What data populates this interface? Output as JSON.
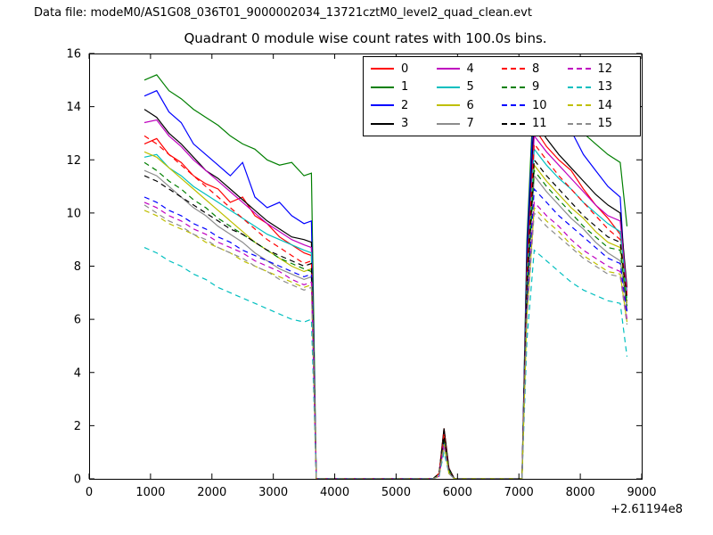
{
  "header": {
    "datafile": "Data file: modeM0/AS1G08_036T01_9000002034_13721cztM0_level2_quad_clean.evt"
  },
  "chart_data": {
    "type": "line",
    "title": "Quadrant 0 module wise count rates with 100.0s bins.",
    "xlabel": "",
    "ylabel": "",
    "xlim": [
      0,
      9000
    ],
    "ylim": [
      0,
      16
    ],
    "grid": false,
    "legend_position": "upper center, 4 columns, column-major",
    "x_offset_label": "+2.61194e8",
    "xticks": [
      0,
      1000,
      2000,
      3000,
      4000,
      5000,
      6000,
      7000,
      8000,
      9000
    ],
    "yticks": [
      0,
      2,
      4,
      6,
      8,
      10,
      12,
      14,
      16
    ],
    "x": [
      900,
      1100,
      1300,
      1500,
      1700,
      1900,
      2100,
      2300,
      2500,
      2700,
      2900,
      3100,
      3300,
      3500,
      3620,
      3700,
      4500,
      5600,
      5700,
      5780,
      5860,
      5950,
      7050,
      7130,
      7250,
      7450,
      7650,
      7850,
      8050,
      8250,
      8450,
      8650,
      8760
    ],
    "series": [
      {
        "name": "0",
        "color": "#ff0000",
        "dash": false,
        "values": [
          12.6,
          12.8,
          12.2,
          11.9,
          11.4,
          11.1,
          10.9,
          10.4,
          10.6,
          9.9,
          9.6,
          9.1,
          8.8,
          8.5,
          8.4,
          0,
          0,
          0,
          0.2,
          1.9,
          0.4,
          0,
          0,
          7.9,
          13.2,
          12.5,
          12.0,
          11.6,
          10.9,
          10.3,
          9.8,
          9.2,
          7.0
        ]
      },
      {
        "name": "1",
        "color": "#007f00",
        "dash": false,
        "values": [
          15.0,
          15.2,
          14.6,
          14.3,
          13.9,
          13.6,
          13.3,
          12.9,
          12.6,
          12.4,
          12.0,
          11.8,
          11.9,
          11.4,
          11.5,
          0,
          0,
          0,
          0.2,
          1.8,
          0.3,
          0,
          0,
          9.0,
          15.0,
          14.2,
          13.6,
          13.8,
          13.0,
          12.6,
          12.2,
          11.9,
          9.5
        ]
      },
      {
        "name": "2",
        "color": "#0000ff",
        "dash": false,
        "values": [
          14.4,
          14.6,
          13.8,
          13.4,
          12.6,
          12.2,
          11.8,
          11.4,
          11.9,
          10.6,
          10.2,
          10.4,
          9.9,
          9.6,
          9.7,
          0,
          0,
          0,
          0.2,
          1.7,
          0.3,
          0,
          0,
          8.6,
          14.4,
          13.6,
          12.9,
          13.1,
          12.2,
          11.6,
          11.0,
          10.6,
          6.3
        ]
      },
      {
        "name": "3",
        "color": "#000000",
        "dash": false,
        "values": [
          13.9,
          13.6,
          13.0,
          12.6,
          12.1,
          11.6,
          11.3,
          10.9,
          10.5,
          10.1,
          9.7,
          9.4,
          9.1,
          9.0,
          8.9,
          0,
          0,
          0,
          0.2,
          1.9,
          0.4,
          0,
          0,
          8.1,
          13.5,
          12.8,
          12.2,
          11.7,
          11.2,
          10.7,
          10.3,
          10.0,
          7.2
        ]
      },
      {
        "name": "4",
        "color": "#bf00bf",
        "dash": false,
        "values": [
          13.4,
          13.5,
          12.9,
          12.5,
          12.0,
          11.6,
          11.2,
          10.8,
          10.4,
          10.0,
          9.6,
          9.3,
          9.0,
          8.8,
          8.7,
          0,
          0,
          0,
          0.2,
          1.6,
          0.3,
          0,
          0,
          7.7,
          12.9,
          12.3,
          11.8,
          11.3,
          10.8,
          10.3,
          9.9,
          9.7,
          7.0
        ]
      },
      {
        "name": "5",
        "color": "#00bfbf",
        "dash": false,
        "values": [
          12.1,
          12.2,
          11.7,
          11.4,
          11.0,
          10.7,
          10.4,
          10.1,
          9.8,
          9.5,
          9.2,
          9.0,
          8.8,
          8.6,
          8.5,
          0,
          0,
          0,
          0.2,
          1.5,
          0.3,
          0,
          0,
          7.4,
          12.4,
          11.8,
          11.3,
          10.9,
          10.4,
          10.0,
          9.6,
          9.3,
          6.8
        ]
      },
      {
        "name": "6",
        "color": "#bfbf00",
        "dash": false,
        "values": [
          12.3,
          12.1,
          11.7,
          11.3,
          10.9,
          10.5,
          10.1,
          9.7,
          9.3,
          8.9,
          8.6,
          8.3,
          8.0,
          7.8,
          7.9,
          0,
          0,
          0,
          0.2,
          1.6,
          0.3,
          0,
          0,
          7.1,
          11.8,
          11.2,
          10.7,
          10.2,
          9.8,
          9.3,
          8.9,
          8.7,
          6.6
        ]
      },
      {
        "name": "7",
        "color": "#8c8c8c",
        "dash": false,
        "values": [
          11.6,
          11.4,
          11.0,
          10.6,
          10.2,
          9.9,
          9.5,
          9.2,
          8.9,
          8.5,
          8.2,
          7.9,
          7.7,
          7.5,
          7.6,
          0,
          0,
          0,
          0.1,
          1.4,
          0.3,
          0,
          0,
          6.8,
          11.4,
          10.8,
          10.3,
          9.8,
          9.4,
          8.9,
          8.5,
          8.2,
          6.4
        ]
      },
      {
        "name": "8",
        "color": "#ff0000",
        "dash": true,
        "values": [
          12.9,
          12.6,
          12.2,
          11.8,
          11.4,
          11.0,
          10.6,
          10.2,
          9.8,
          9.4,
          9.0,
          8.7,
          8.4,
          8.1,
          8.2,
          0,
          0,
          0,
          0.2,
          1.7,
          0.3,
          0,
          0,
          7.6,
          12.6,
          12.0,
          11.4,
          10.9,
          10.4,
          9.9,
          9.4,
          9.0,
          6.9
        ]
      },
      {
        "name": "9",
        "color": "#007f00",
        "dash": true,
        "values": [
          11.9,
          11.6,
          11.2,
          10.9,
          10.5,
          10.2,
          9.8,
          9.5,
          9.2,
          8.9,
          8.6,
          8.3,
          8.1,
          7.9,
          7.8,
          0,
          0,
          0,
          0.1,
          1.5,
          0.3,
          0,
          0,
          7.0,
          11.6,
          11.0,
          10.5,
          10.0,
          9.5,
          9.1,
          8.7,
          8.6,
          6.5
        ]
      },
      {
        "name": "10",
        "color": "#0000ff",
        "dash": true,
        "values": [
          10.6,
          10.4,
          10.1,
          9.9,
          9.6,
          9.4,
          9.1,
          8.9,
          8.6,
          8.4,
          8.2,
          8.0,
          7.8,
          7.6,
          7.7,
          0,
          0,
          0,
          0.1,
          1.4,
          0.2,
          0,
          0,
          6.5,
          10.9,
          10.4,
          9.9,
          9.5,
          9.1,
          8.7,
          8.3,
          8.1,
          6.2
        ]
      },
      {
        "name": "11",
        "color": "#000000",
        "dash": true,
        "values": [
          11.4,
          11.2,
          10.9,
          10.6,
          10.3,
          10.0,
          9.7,
          9.4,
          9.2,
          8.9,
          8.6,
          8.4,
          8.2,
          8.0,
          8.1,
          0,
          0,
          0,
          0.2,
          1.6,
          0.3,
          0,
          0,
          7.2,
          12.0,
          11.4,
          10.9,
          10.4,
          9.9,
          9.5,
          9.1,
          8.9,
          6.7
        ]
      },
      {
        "name": "12",
        "color": "#bf00bf",
        "dash": true,
        "values": [
          10.4,
          10.2,
          9.9,
          9.7,
          9.4,
          9.2,
          8.9,
          8.7,
          8.5,
          8.2,
          8.0,
          7.8,
          7.5,
          7.3,
          7.4,
          0,
          0,
          0,
          0.1,
          1.3,
          0.2,
          0,
          0,
          6.2,
          10.4,
          9.9,
          9.5,
          9.0,
          8.6,
          8.3,
          8.0,
          7.8,
          6.0
        ]
      },
      {
        "name": "13",
        "color": "#00bfbf",
        "dash": true,
        "values": [
          8.7,
          8.5,
          8.2,
          8.0,
          7.7,
          7.5,
          7.2,
          7.0,
          6.8,
          6.6,
          6.4,
          6.2,
          6.0,
          5.9,
          6.0,
          0,
          0,
          0,
          0.1,
          1.0,
          0.2,
          0,
          0,
          5.2,
          8.6,
          8.2,
          7.8,
          7.4,
          7.1,
          6.9,
          6.7,
          6.6,
          4.6
        ]
      },
      {
        "name": "14",
        "color": "#bfbf00",
        "dash": true,
        "values": [
          10.1,
          9.9,
          9.6,
          9.4,
          9.2,
          8.9,
          8.7,
          8.5,
          8.2,
          8.0,
          7.8,
          7.6,
          7.4,
          7.2,
          7.3,
          0,
          0,
          0,
          0.1,
          1.3,
          0.2,
          0,
          0,
          6.1,
          10.2,
          9.7,
          9.3,
          8.8,
          8.4,
          8.1,
          7.8,
          7.7,
          5.9
        ]
      },
      {
        "name": "15",
        "color": "#8c8c8c",
        "dash": true,
        "values": [
          10.3,
          10.0,
          9.7,
          9.5,
          9.2,
          9.0,
          8.7,
          8.5,
          8.3,
          8.0,
          7.8,
          7.5,
          7.3,
          7.1,
          7.2,
          0,
          0,
          0,
          0.1,
          1.2,
          0.2,
          0,
          0,
          6.0,
          10.0,
          9.5,
          9.1,
          8.7,
          8.3,
          8.0,
          7.7,
          7.6,
          5.8
        ]
      }
    ]
  }
}
